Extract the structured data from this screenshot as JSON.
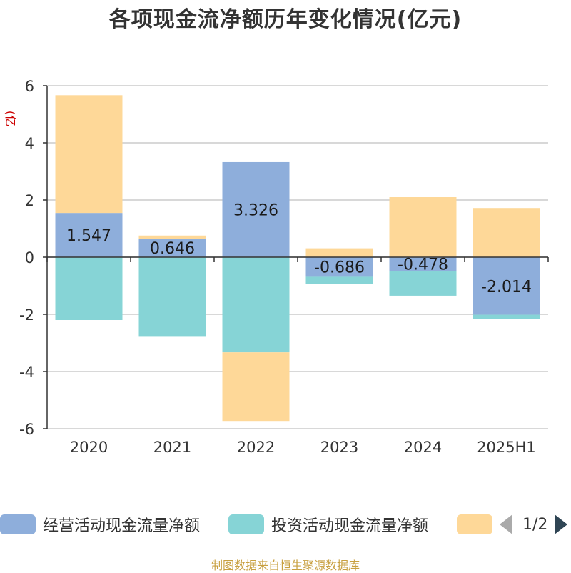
{
  "title": "各项现金流净额历年变化情况(亿元)",
  "y_unit": "(亿元)",
  "legend": {
    "items": [
      {
        "label": "经营活动现金流量净额",
        "color": "#8eaedb"
      },
      {
        "label": "投资活动现金流量净额",
        "color": "#86d4d6"
      },
      {
        "label": "",
        "color": "#fed898"
      }
    ],
    "pager": "1/2"
  },
  "source": "制图数据来自恒生聚源数据库",
  "chart_data": {
    "type": "bar",
    "stacked": true,
    "categories": [
      "2020",
      "2021",
      "2022",
      "2023",
      "2024",
      "2025H1"
    ],
    "ylim": [
      -6,
      6
    ],
    "yticks": [
      6,
      4,
      2,
      0,
      -2,
      -4,
      -6
    ],
    "ytick_labels": [
      "6",
      "4",
      "2",
      "0",
      "-2",
      "-4",
      "-6"
    ],
    "grid": true,
    "series": [
      {
        "name": "经营活动现金流量净额",
        "color": "#8eaedb",
        "values": [
          1.547,
          0.646,
          3.326,
          -0.686,
          -0.478,
          -2.014
        ],
        "labels": [
          "1.547",
          "0.646",
          "3.326",
          "-0.686",
          "-0.478",
          "-2.014"
        ]
      },
      {
        "name": "投资活动现金流量净额",
        "color": "#86d4d6",
        "values": [
          -2.2,
          -2.76,
          -3.33,
          -0.24,
          -0.87,
          -0.16
        ]
      },
      {
        "color": "#fed898",
        "values": [
          4.12,
          0.11,
          -2.4,
          0.31,
          2.1,
          1.72
        ]
      }
    ]
  }
}
